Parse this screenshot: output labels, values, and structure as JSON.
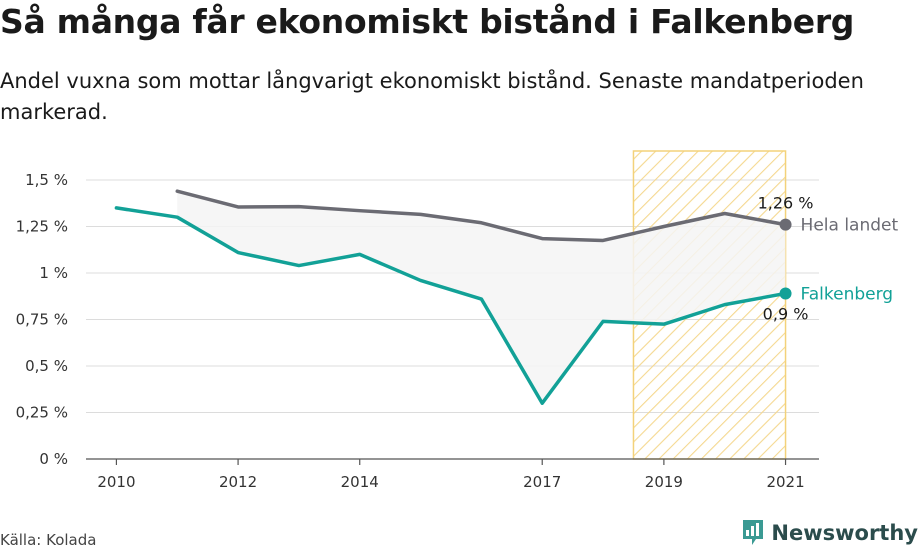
{
  "header": {
    "title": "Så många får ekonomiskt bistånd i Falkenberg",
    "subtitle": "Andel vuxna som mottar långvarigt ekonomiskt bistånd. Senaste mandatperioden markerad."
  },
  "footer": {
    "source": "Källa: Kolada",
    "brand": "Newsworthy",
    "brand_icon": "newsworthy-logo-icon"
  },
  "colors": {
    "falkenberg": "#12a197",
    "hela_landet": "#6b6b73",
    "highlight_stroke": "#f3d27a",
    "highlight_hatch": "#f5d890",
    "area_fill": "#f4f4f4",
    "grid": "#dcdcdc",
    "brand": "#3a9a93"
  },
  "chart_data": {
    "type": "line",
    "x_ticks": [
      2010,
      2012,
      2014,
      2017,
      2019,
      2021
    ],
    "xlim": [
      2009.5,
      2021.55
    ],
    "ylim": [
      0,
      1.5
    ],
    "y_ticks": [
      0,
      0.25,
      0.5,
      0.75,
      1,
      1.25,
      1.5
    ],
    "y_tick_labels": [
      "0 %",
      "0,25 %",
      "0,5 %",
      "0,75 %",
      "1 %",
      "1,25 %",
      "1,5 %"
    ],
    "grid": true,
    "highlight_period": [
      2018.5,
      2021
    ],
    "series": [
      {
        "name": "Falkenberg",
        "key": "falkenberg",
        "x": [
          2010,
          2011,
          2012,
          2013,
          2014,
          2015,
          2016,
          2017,
          2018,
          2019,
          2020,
          2021
        ],
        "values": [
          1.35,
          1.3,
          1.11,
          1.04,
          1.1,
          0.96,
          0.86,
          0.3,
          0.74,
          0.725,
          0.83,
          0.89
        ],
        "end_label": "0,9 %"
      },
      {
        "name": "Hela landet",
        "key": "hela_landet",
        "x": [
          2011,
          2012,
          2013,
          2014,
          2015,
          2016,
          2017,
          2018,
          2019,
          2020,
          2021
        ],
        "values": [
          1.44,
          1.355,
          1.357,
          1.335,
          1.315,
          1.27,
          1.185,
          1.175,
          1.25,
          1.32,
          1.26
        ],
        "end_label": "1,26 %"
      }
    ]
  }
}
